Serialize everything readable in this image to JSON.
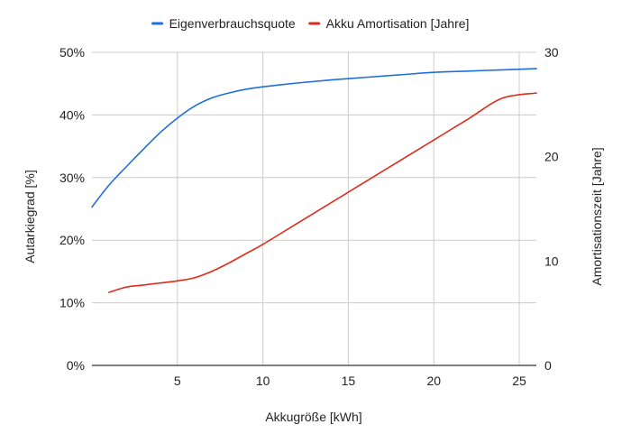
{
  "chart_data": {
    "type": "line",
    "title": "",
    "xlabel": "Akkugröße [kWh]",
    "ylabel": "Autarkiegrad [%]",
    "y2label": "Amortisationszeit [Jahre]",
    "xlim": [
      0,
      26
    ],
    "ylim": [
      0,
      50
    ],
    "y2lim": [
      0,
      30
    ],
    "x_ticks": [
      5,
      10,
      15,
      20,
      25
    ],
    "y_ticks": [
      0,
      10,
      20,
      30,
      40,
      50
    ],
    "y_tick_labels": [
      "0%",
      "10%",
      "20%",
      "30%",
      "40%",
      "50%"
    ],
    "y2_ticks": [
      0,
      10,
      20,
      30
    ],
    "grid": true,
    "legend_position": "top",
    "series": [
      {
        "name": "Eigenverbrauchsquote",
        "axis": "left",
        "color": "#1f6fdc",
        "x": [
          0,
          1,
          2,
          3,
          4,
          5,
          6,
          7,
          8,
          9,
          10,
          12,
          14,
          16,
          18,
          20,
          22,
          24,
          26
        ],
        "y": [
          25.3,
          28.8,
          31.7,
          34.5,
          37.2,
          39.5,
          41.4,
          42.7,
          43.5,
          44.1,
          44.5,
          45.1,
          45.6,
          46.0,
          46.4,
          46.8,
          47.0,
          47.2,
          47.4
        ]
      },
      {
        "name": "Akku Amortisation [Jahre]",
        "axis": "right",
        "color": "#e02b1a",
        "x": [
          1,
          2,
          3,
          4,
          5,
          6,
          7,
          8,
          9,
          10,
          12,
          14,
          16,
          18,
          20,
          22,
          24,
          26
        ],
        "y": [
          7.0,
          7.5,
          7.7,
          7.9,
          8.1,
          8.4,
          9.0,
          9.8,
          10.7,
          11.6,
          13.6,
          15.6,
          17.6,
          19.6,
          21.6,
          23.6,
          25.6,
          26.1
        ]
      }
    ]
  }
}
